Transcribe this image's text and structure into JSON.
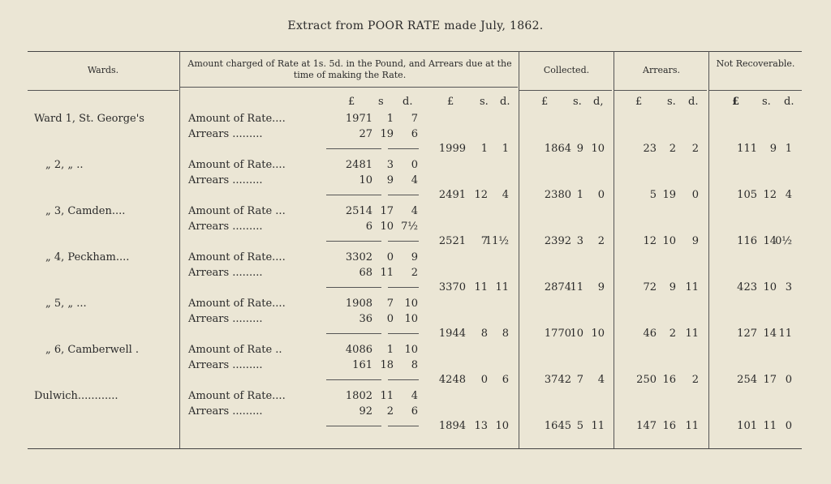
{
  "title": "Extract from POOR RATE made July, 1862.",
  "headers": {
    "wards": "Wards.",
    "amount": "Amount charged of Rate at 1s. 5d. in the Pound, and Arrears due at the time of making the Rate.",
    "collected": "Collected.",
    "arrears": "Arrears.",
    "not_recoverable": "Not Recoverable."
  },
  "units": {
    "pound": "£",
    "pound_alt": "£",
    "shilling": "s.",
    "pence": "d.",
    "shilling_first": "s",
    "pence_first": "d.",
    "pound_nr": "£",
    "shilling_coll": "s.",
    "pence_coll": "d,"
  },
  "rows": [
    {
      "ward": "Ward 1, St. George's",
      "rate_label": "Amount of Rate....",
      "rate": [
        "1971",
        "1",
        "7"
      ],
      "arrears_label": "Arrears .........",
      "arrears": [
        "27",
        "19",
        "6"
      ],
      "total": [
        "1999",
        "1",
        "1"
      ],
      "collected": [
        "1864",
        "9",
        "10"
      ],
      "outstanding": [
        "23",
        "2",
        "2"
      ],
      "not_recoverable": [
        "111",
        "9",
        "1"
      ]
    },
    {
      "ward": "„ 2, „ ..",
      "rate_label": "Amount of Rate....",
      "rate": [
        "2481",
        "3",
        "0"
      ],
      "arrears_label": "Arrears .........",
      "arrears": [
        "10",
        "9",
        "4"
      ],
      "total": [
        "2491",
        "12",
        "4"
      ],
      "collected": [
        "2380",
        "1",
        "0"
      ],
      "outstanding": [
        "5",
        "19",
        "0"
      ],
      "not_recoverable": [
        "105",
        "12",
        "4"
      ]
    },
    {
      "ward": "„ 3, Camden....",
      "rate_label": "Amount of Rate ...",
      "rate": [
        "2514",
        "17",
        "4"
      ],
      "arrears_label": "Arrears .........",
      "arrears": [
        "6",
        "10",
        "7½"
      ],
      "total": [
        "2521",
        "7",
        "11½"
      ],
      "collected": [
        "2392",
        "3",
        "2"
      ],
      "outstanding": [
        "12",
        "10",
        "9"
      ],
      "not_recoverable": [
        "116",
        "14",
        "0½"
      ]
    },
    {
      "ward": "„ 4, Peckham....",
      "rate_label": "Amount of Rate....",
      "rate": [
        "3302",
        "0",
        "9"
      ],
      "arrears_label": "Arrears .........",
      "arrears": [
        "68",
        "11",
        "2"
      ],
      "total": [
        "3370",
        "11",
        "11"
      ],
      "collected": [
        "2874",
        "11",
        "9"
      ],
      "outstanding": [
        "72",
        "9",
        "11"
      ],
      "not_recoverable": [
        "423",
        "10",
        "3"
      ]
    },
    {
      "ward": "„ 5, „ ...",
      "rate_label": "Amount of Rate....",
      "rate": [
        "1908",
        "7",
        "10"
      ],
      "arrears_label": "Arrears .........",
      "arrears": [
        "36",
        "0",
        "10"
      ],
      "total": [
        "1944",
        "8",
        "8"
      ],
      "collected": [
        "1770",
        "10",
        "10"
      ],
      "outstanding": [
        "46",
        "2",
        "11"
      ],
      "not_recoverable": [
        "127",
        "14",
        "11"
      ]
    },
    {
      "ward": "„ 6, Camberwell .",
      "rate_label": "Amount of Rate ..",
      "rate": [
        "4086",
        "1",
        "10"
      ],
      "arrears_label": "Arrears .........",
      "arrears": [
        "161",
        "18",
        "8"
      ],
      "total": [
        "4248",
        "0",
        "6"
      ],
      "collected": [
        "3742",
        "7",
        "4"
      ],
      "outstanding": [
        "250",
        "16",
        "2"
      ],
      "not_recoverable": [
        "254",
        "17",
        "0"
      ]
    },
    {
      "ward": "Dulwich............",
      "rate_label": "Amount of Rate....",
      "rate": [
        "1802",
        "11",
        "4"
      ],
      "arrears_label": "Arrears .........",
      "arrears": [
        "92",
        "2",
        "6"
      ],
      "total": [
        "1894",
        "13",
        "10"
      ],
      "collected": [
        "1645",
        "5",
        "11"
      ],
      "outstanding": [
        "147",
        "16",
        "11"
      ],
      "not_recoverable": [
        "101",
        "11",
        "0"
      ]
    }
  ]
}
